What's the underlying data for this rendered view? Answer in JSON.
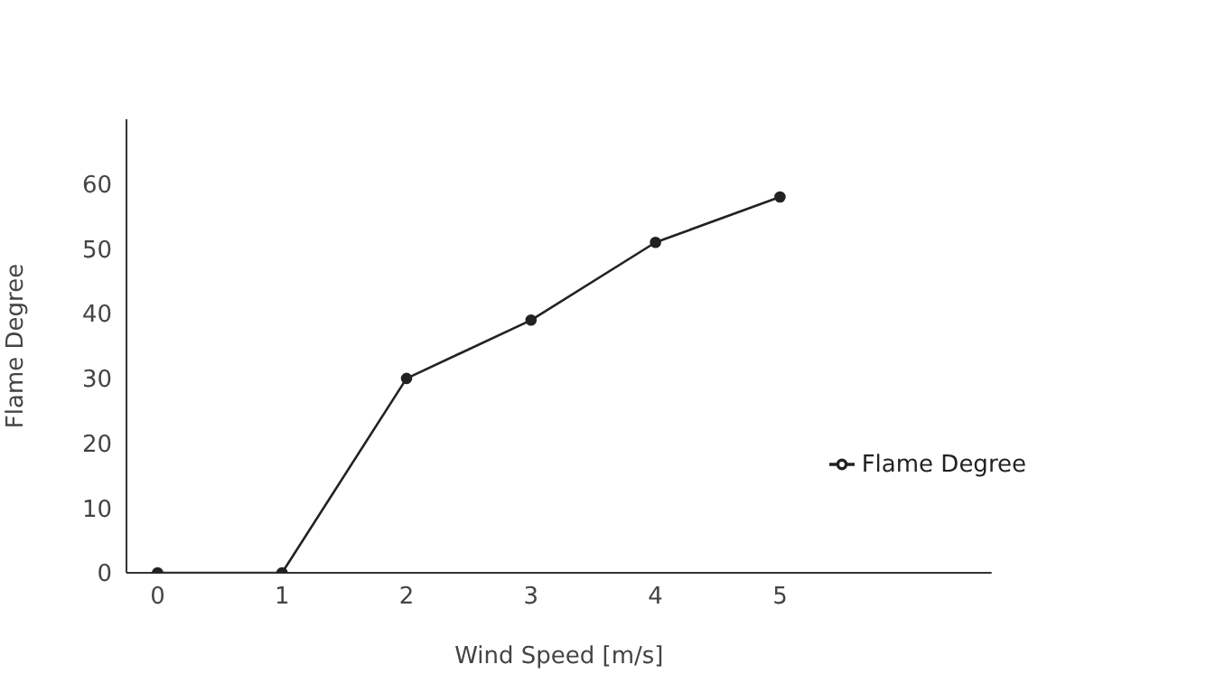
{
  "chart_data": {
    "type": "line",
    "xlabel": "Wind Speed [m/s]",
    "ylabel": "Flame Degree",
    "x": [
      0,
      1,
      2,
      3,
      4,
      5
    ],
    "series": [
      {
        "name": "Flame Degree",
        "color": "#222222",
        "values": [
          0,
          0,
          30,
          39,
          51,
          58
        ]
      }
    ],
    "xlim": [
      -0.25,
      6.7
    ],
    "xticks": [
      0,
      1,
      2,
      3,
      4,
      5
    ],
    "ylim": [
      0,
      70
    ],
    "yticks": [
      0,
      10,
      20,
      30,
      40,
      50,
      60
    ],
    "grid": false,
    "legend": "right",
    "marker": "circle",
    "line_style": "solid"
  }
}
